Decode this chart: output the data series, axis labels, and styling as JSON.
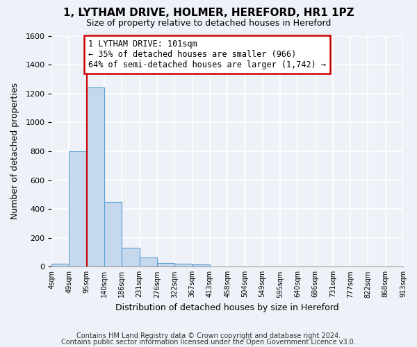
{
  "title": "1, LYTHAM DRIVE, HOLMER, HEREFORD, HR1 1PZ",
  "subtitle": "Size of property relative to detached houses in Hereford",
  "xlabel": "Distribution of detached houses by size in Hereford",
  "ylabel": "Number of detached properties",
  "footnote1": "Contains HM Land Registry data © Crown copyright and database right 2024.",
  "footnote2": "Contains public sector information licensed under the Open Government Licence v3.0.",
  "bar_values": [
    20,
    800,
    1240,
    450,
    130,
    65,
    25,
    20,
    15,
    0,
    0,
    0,
    0,
    0,
    0,
    0,
    0,
    0,
    0,
    0
  ],
  "bin_labels": [
    "4sqm",
    "49sqm",
    "95sqm",
    "140sqm",
    "186sqm",
    "231sqm",
    "276sqm",
    "322sqm",
    "367sqm",
    "413sqm",
    "458sqm",
    "504sqm",
    "549sqm",
    "595sqm",
    "640sqm",
    "686sqm",
    "731sqm",
    "777sqm",
    "822sqm",
    "868sqm",
    "913sqm"
  ],
  "bar_color": "#c5d8ed",
  "bar_edge_color": "#5a9fd4",
  "red_line_x": 2.0,
  "annotation_text": "1 LYTHAM DRIVE: 101sqm\n← 35% of detached houses are smaller (966)\n64% of semi-detached houses are larger (1,742) →",
  "annotation_box_color": "#ffffff",
  "annotation_box_edge": "#cc0000",
  "ylim": [
    0,
    1600
  ],
  "yticks": [
    0,
    200,
    400,
    600,
    800,
    1000,
    1200,
    1400,
    1600
  ],
  "background_color": "#eef2f8",
  "grid_color": "#ffffff",
  "fig_width": 6.0,
  "fig_height": 5.0
}
